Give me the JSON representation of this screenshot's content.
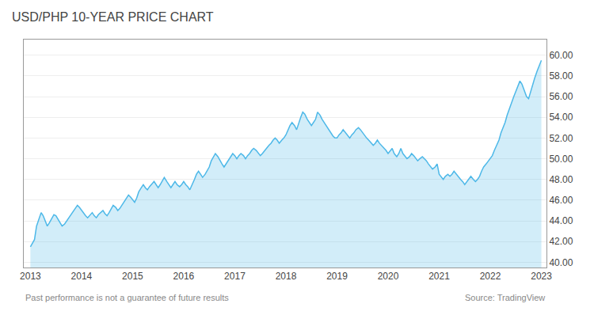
{
  "chart_data": {
    "type": "line",
    "title": "USD/PHP 10-YEAR PRICE CHART",
    "annotations": [
      "Past performance is not a guarantee of future results",
      "Source: TradingView"
    ],
    "color": "#4db8e8",
    "grid": true,
    "xlim": [
      2012.87,
      2023.1
    ],
    "xticks": [
      2013,
      2014,
      2015,
      2016,
      2017,
      2018,
      2019,
      2020,
      2021,
      2022,
      2023
    ],
    "ylim": [
      39.5,
      61.5
    ],
    "yticks": [
      {
        "value": 40.0,
        "label": "40.00"
      },
      {
        "value": 42.0,
        "label": "42.00"
      },
      {
        "value": 44.0,
        "label": "44.00"
      },
      {
        "value": 46.0,
        "label": "46.00"
      },
      {
        "value": 48.0,
        "label": "48.00"
      },
      {
        "value": 50.0,
        "label": "50.00"
      },
      {
        "value": 52.0,
        "label": "52.00"
      },
      {
        "value": 54.0,
        "label": "54.00"
      },
      {
        "value": 56.0,
        "label": "56.00"
      },
      {
        "value": 58.0,
        "label": "58.00"
      },
      {
        "value": 60.0,
        "label": "60.00"
      }
    ],
    "x": [
      2013.0,
      2013.04,
      2013.08,
      2013.12,
      2013.17,
      2013.21,
      2013.25,
      2013.29,
      2013.33,
      2013.37,
      2013.42,
      2013.46,
      2013.5,
      2013.54,
      2013.58,
      2013.62,
      2013.67,
      2013.71,
      2013.75,
      2013.79,
      2013.83,
      2013.87,
      2013.92,
      2013.96,
      2014.0,
      2014.04,
      2014.08,
      2014.12,
      2014.17,
      2014.21,
      2014.25,
      2014.29,
      2014.33,
      2014.37,
      2014.42,
      2014.46,
      2014.5,
      2014.54,
      2014.58,
      2014.62,
      2014.67,
      2014.71,
      2014.75,
      2014.79,
      2014.83,
      2014.87,
      2014.92,
      2014.96,
      2015.0,
      2015.04,
      2015.08,
      2015.12,
      2015.17,
      2015.21,
      2015.25,
      2015.29,
      2015.33,
      2015.37,
      2015.42,
      2015.46,
      2015.5,
      2015.54,
      2015.58,
      2015.62,
      2015.67,
      2015.71,
      2015.75,
      2015.79,
      2015.83,
      2015.87,
      2015.92,
      2015.96,
      2016.0,
      2016.04,
      2016.08,
      2016.12,
      2016.17,
      2016.21,
      2016.25,
      2016.29,
      2016.33,
      2016.37,
      2016.42,
      2016.46,
      2016.5,
      2016.54,
      2016.58,
      2016.62,
      2016.67,
      2016.71,
      2016.75,
      2016.79,
      2016.83,
      2016.87,
      2016.92,
      2016.96,
      2017.0,
      2017.04,
      2017.08,
      2017.12,
      2017.17,
      2017.21,
      2017.25,
      2017.29,
      2017.33,
      2017.37,
      2017.42,
      2017.46,
      2017.5,
      2017.54,
      2017.58,
      2017.62,
      2017.67,
      2017.71,
      2017.75,
      2017.79,
      2017.83,
      2017.87,
      2017.92,
      2017.96,
      2018.0,
      2018.04,
      2018.08,
      2018.12,
      2018.17,
      2018.21,
      2018.25,
      2018.29,
      2018.33,
      2018.37,
      2018.42,
      2018.46,
      2018.5,
      2018.54,
      2018.58,
      2018.62,
      2018.67,
      2018.71,
      2018.75,
      2018.79,
      2018.83,
      2018.87,
      2018.92,
      2018.96,
      2019.0,
      2019.04,
      2019.08,
      2019.12,
      2019.17,
      2019.21,
      2019.25,
      2019.29,
      2019.33,
      2019.37,
      2019.42,
      2019.46,
      2019.5,
      2019.54,
      2019.58,
      2019.62,
      2019.67,
      2019.71,
      2019.75,
      2019.79,
      2019.83,
      2019.87,
      2019.92,
      2019.96,
      2020.0,
      2020.04,
      2020.08,
      2020.12,
      2020.17,
      2020.21,
      2020.25,
      2020.29,
      2020.33,
      2020.37,
      2020.42,
      2020.46,
      2020.5,
      2020.54,
      2020.58,
      2020.62,
      2020.67,
      2020.71,
      2020.75,
      2020.79,
      2020.83,
      2020.87,
      2020.92,
      2020.96,
      2021.0,
      2021.04,
      2021.08,
      2021.12,
      2021.17,
      2021.21,
      2021.25,
      2021.29,
      2021.33,
      2021.37,
      2021.42,
      2021.46,
      2021.5,
      2021.54,
      2021.58,
      2021.62,
      2021.67,
      2021.71,
      2021.75,
      2021.79,
      2021.83,
      2021.87,
      2021.92,
      2021.96,
      2022.0,
      2022.04,
      2022.08,
      2022.12,
      2022.17,
      2022.21,
      2022.25,
      2022.29,
      2022.33,
      2022.37,
      2022.42,
      2022.46,
      2022.5,
      2022.54,
      2022.58,
      2022.62,
      2022.67,
      2022.71,
      2022.75,
      2022.79,
      2022.83,
      2022.87,
      2022.92,
      2022.96,
      2023.0
    ],
    "values": [
      41.5,
      41.8,
      42.2,
      43.5,
      44.2,
      44.8,
      44.5,
      44.0,
      43.5,
      43.8,
      44.3,
      44.6,
      44.5,
      44.2,
      43.8,
      43.5,
      43.7,
      44.0,
      44.2,
      44.5,
      44.8,
      45.2,
      45.5,
      45.3,
      45.0,
      44.8,
      44.5,
      44.3,
      44.6,
      44.8,
      44.5,
      44.3,
      44.6,
      44.8,
      45.0,
      44.7,
      44.5,
      44.8,
      45.2,
      45.5,
      45.3,
      45.0,
      45.2,
      45.5,
      45.8,
      46.2,
      46.5,
      46.3,
      46.0,
      45.8,
      46.2,
      46.8,
      47.2,
      47.5,
      47.2,
      47.0,
      47.3,
      47.5,
      47.8,
      47.5,
      47.2,
      47.5,
      47.8,
      48.2,
      47.8,
      47.5,
      47.2,
      47.5,
      47.8,
      47.5,
      47.3,
      47.5,
      47.8,
      47.5,
      47.3,
      47.0,
      47.5,
      48.0,
      48.5,
      48.8,
      48.5,
      48.2,
      48.5,
      48.8,
      49.2,
      49.8,
      50.2,
      50.5,
      50.2,
      49.8,
      49.5,
      49.2,
      49.5,
      49.8,
      50.2,
      50.5,
      50.3,
      50.0,
      50.3,
      50.5,
      50.3,
      50.0,
      50.3,
      50.5,
      50.8,
      51.0,
      50.8,
      50.5,
      50.3,
      50.5,
      50.8,
      51.0,
      51.3,
      51.5,
      51.8,
      52.0,
      51.8,
      51.5,
      51.8,
      52.0,
      52.3,
      52.8,
      53.2,
      53.5,
      53.2,
      52.8,
      53.5,
      54.0,
      54.5,
      54.3,
      53.8,
      53.5,
      53.2,
      53.5,
      53.8,
      54.5,
      54.2,
      53.8,
      53.5,
      53.2,
      52.8,
      52.5,
      52.2,
      52.0,
      52.0,
      52.3,
      52.5,
      52.8,
      52.5,
      52.3,
      52.0,
      52.3,
      52.5,
      52.8,
      53.0,
      52.8,
      52.5,
      52.3,
      52.0,
      51.8,
      51.5,
      51.3,
      51.5,
      51.8,
      51.5,
      51.3,
      51.0,
      50.8,
      50.5,
      50.8,
      51.0,
      50.5,
      50.2,
      50.5,
      51.0,
      50.5,
      50.2,
      50.0,
      50.2,
      50.5,
      50.3,
      50.0,
      49.8,
      50.0,
      50.2,
      50.0,
      49.8,
      49.5,
      49.2,
      49.0,
      49.2,
      49.5,
      48.5,
      48.2,
      48.0,
      48.3,
      48.5,
      48.3,
      48.5,
      48.8,
      48.5,
      48.3,
      48.0,
      47.8,
      47.5,
      47.8,
      48.0,
      48.3,
      48.0,
      47.8,
      48.0,
      48.3,
      48.8,
      49.2,
      49.5,
      49.8,
      50.0,
      50.3,
      50.8,
      51.2,
      51.8,
      52.5,
      53.0,
      53.5,
      54.2,
      54.8,
      55.5,
      56.0,
      56.5,
      57.0,
      57.5,
      57.2,
      56.5,
      56.0,
      55.8,
      56.5,
      57.2,
      57.8,
      58.5,
      59.0,
      59.5
    ]
  }
}
